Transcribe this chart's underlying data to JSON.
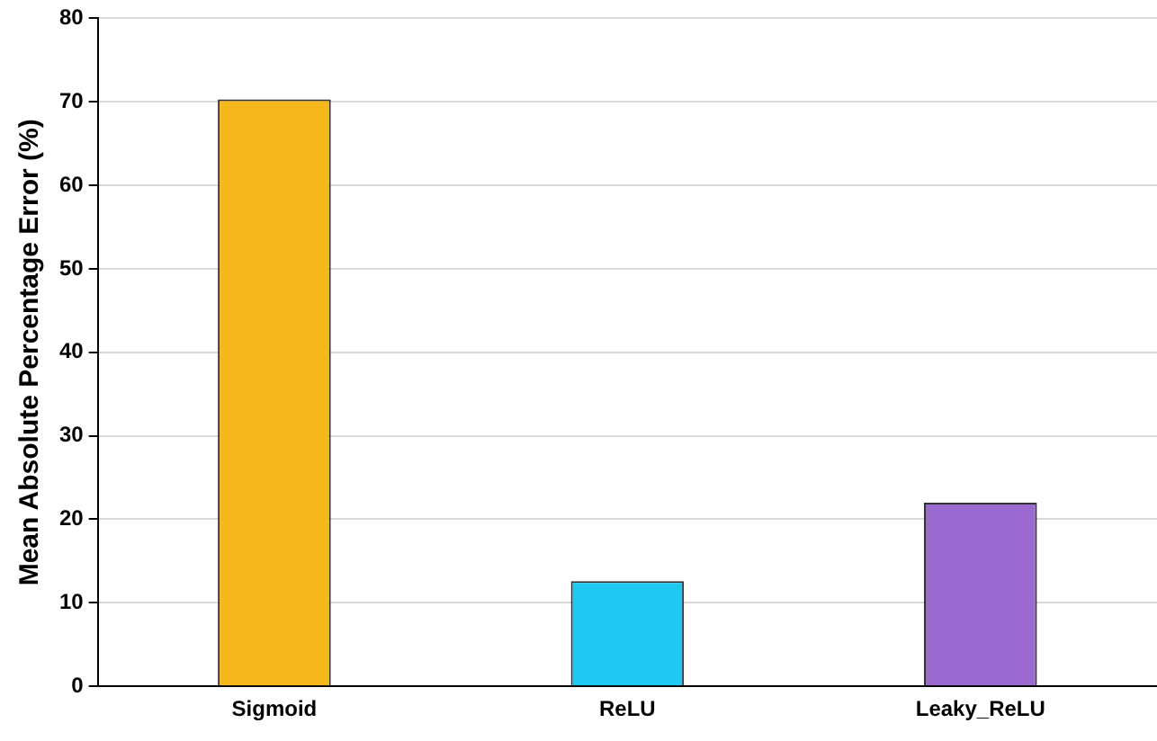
{
  "chart_data": {
    "type": "bar",
    "ylabel": "Mean Absolute Percentage Error (%)",
    "categories": [
      "Sigmoid",
      "ReLU",
      "Leaky_ReLU"
    ],
    "values": [
      70.3,
      12.6,
      22.0
    ],
    "colors": [
      "#f5b81c",
      "#1ec8f0",
      "#9b6ad0"
    ],
    "ylim": [
      0,
      80
    ],
    "yticks": [
      0,
      10,
      20,
      30,
      40,
      50,
      60,
      70,
      80
    ],
    "grid": "y"
  }
}
